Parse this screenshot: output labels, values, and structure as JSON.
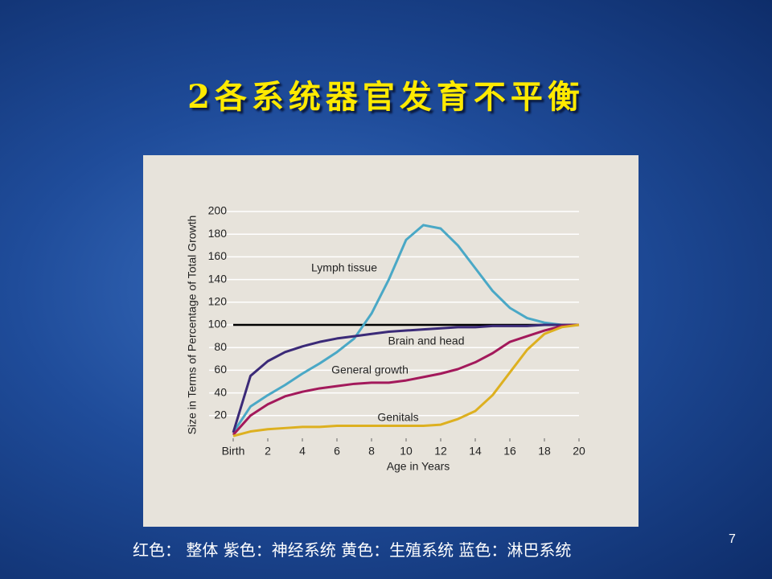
{
  "slide_title": "2各系统器官发育不平衡",
  "caption": "红色： 整体  紫色：神经系统  黄色：生殖系统   蓝色：淋巴系统",
  "page_number": "7",
  "chart_data": {
    "type": "line",
    "xlabel": "Age in Years",
    "ylabel": "Size in Terms of Percentage of Total Growth",
    "x": [
      0,
      1,
      2,
      3,
      4,
      5,
      6,
      7,
      8,
      9,
      10,
      11,
      12,
      13,
      14,
      15,
      16,
      17,
      18,
      19,
      20
    ],
    "xlim": [
      0,
      20
    ],
    "xticks": [
      {
        "value": 0,
        "label": "Birth"
      },
      2,
      4,
      6,
      8,
      10,
      12,
      14,
      16,
      18,
      20
    ],
    "ylim": [
      0,
      200
    ],
    "yticks": [
      20,
      40,
      60,
      80,
      100,
      120,
      140,
      160,
      180,
      200
    ],
    "grid": true,
    "reference_line": 100,
    "series": [
      {
        "name": "Lymph tissue",
        "color": "#4aa8c6",
        "values": [
          5,
          28,
          38,
          47,
          57,
          66,
          76,
          88,
          110,
          140,
          175,
          188,
          185,
          170,
          150,
          130,
          115,
          106,
          102,
          100,
          100
        ]
      },
      {
        "name": "Brain and head",
        "color": "#3b2a78",
        "values": [
          5,
          55,
          68,
          76,
          81,
          85,
          88,
          90,
          92,
          94,
          95,
          96,
          97,
          98,
          98,
          99,
          99,
          99,
          100,
          100,
          100
        ]
      },
      {
        "name": "General growth",
        "color": "#a3195b",
        "values": [
          3,
          20,
          30,
          37,
          41,
          44,
          46,
          48,
          49,
          49,
          51,
          54,
          57,
          61,
          67,
          75,
          85,
          90,
          95,
          99,
          100
        ]
      },
      {
        "name": "Genitals",
        "color": "#ddb020",
        "values": [
          2,
          6,
          8,
          9,
          10,
          10,
          11,
          11,
          11,
          11,
          11,
          11,
          12,
          17,
          24,
          38,
          58,
          78,
          92,
          98,
          100
        ]
      }
    ]
  }
}
